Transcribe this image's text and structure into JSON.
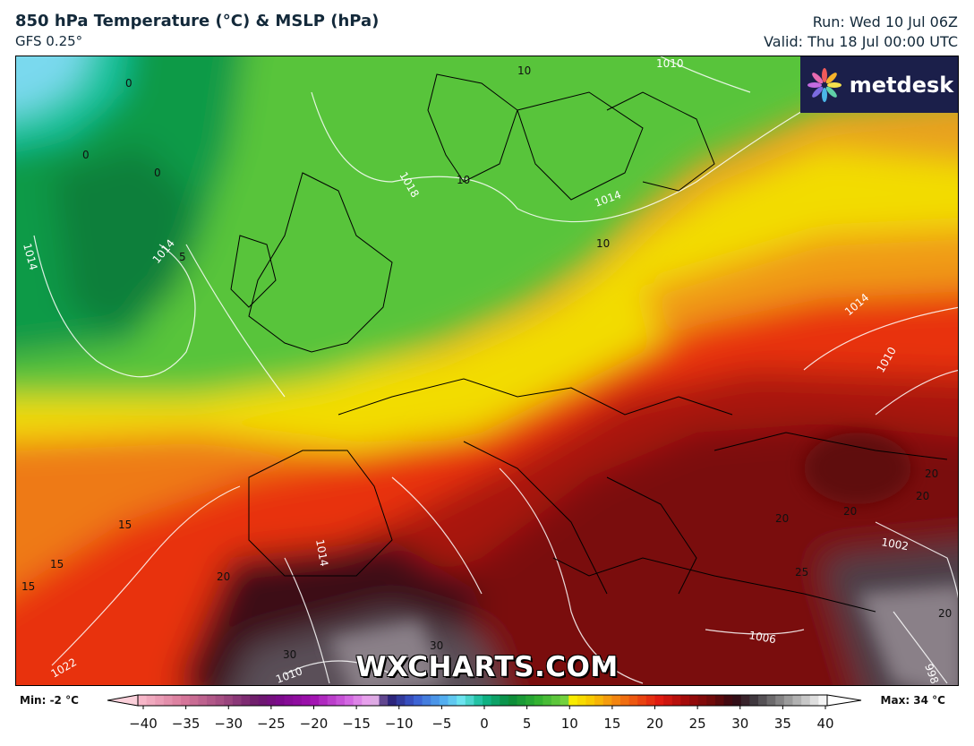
{
  "header": {
    "title": "850 hPa Temperature (°C) & MSLP (hPa)",
    "model": "GFS 0.25°",
    "run": "Run: Wed 10 Jul 06Z",
    "valid": "Valid: Thu 18 Jul 00:00 UTC"
  },
  "watermark": "WXCHARTS.COM",
  "logo": {
    "text": "metdesk",
    "icon": "flower-logo-icon"
  },
  "colorbar": {
    "min_label": "Min: -2 °C",
    "max_label": "Max: 34 °C",
    "ticks": [
      "−40",
      "−35",
      "−30",
      "−25",
      "−20",
      "−15",
      "−10",
      "−5",
      "0",
      "5",
      "10",
      "15",
      "20",
      "25",
      "30",
      "35",
      "40"
    ]
  },
  "isobar_labels": [
    "1010",
    "1018",
    "1014",
    "1014",
    "1014",
    "1014",
    "1010",
    "1014",
    "1022",
    "1010",
    "1006",
    "1002",
    "998"
  ],
  "temperature_labels": [
    "0",
    "0",
    "0",
    "5",
    "10",
    "10",
    "10",
    "15",
    "15",
    "15",
    "20",
    "20",
    "20",
    "20",
    "20",
    "20",
    "25",
    "30",
    "30"
  ]
}
